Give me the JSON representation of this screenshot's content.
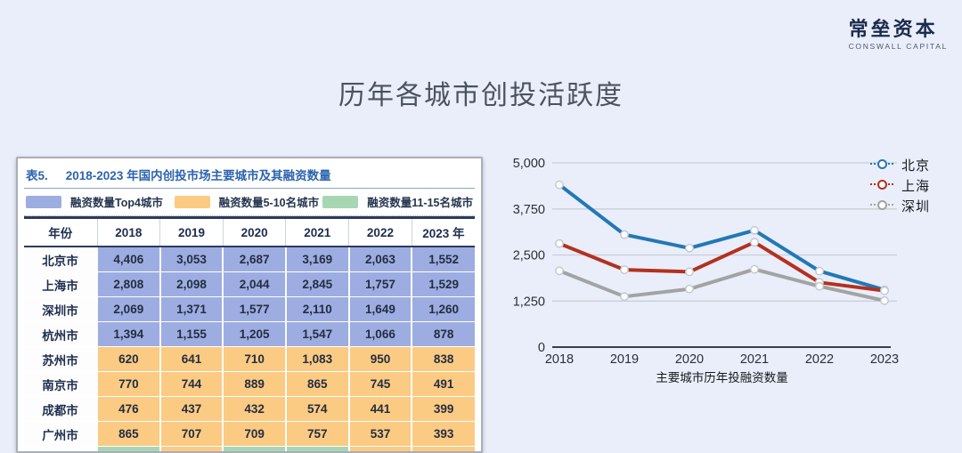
{
  "slide": {
    "title": "历年各城市创投活跃度"
  },
  "logo": {
    "cn": "常垒资本",
    "en": "CONSWALL CAPITAL",
    "red": "#b2232e",
    "blue": "#1f5080"
  },
  "table": {
    "caption_label": "表5.",
    "caption_text": "2018-2023 年国内创投市场主要城市及其融资数量",
    "legend": [
      {
        "label": "融资数量Top4城市",
        "color": "#9dade2"
      },
      {
        "label": "融资数量5-10名城市",
        "color": "#fbcb83"
      },
      {
        "label": "融资数量11-15名城市",
        "color": "#a7d7b2"
      }
    ],
    "columns": [
      "年份",
      "2018",
      "2019",
      "2020",
      "2021",
      "2022",
      "2023 年"
    ],
    "rows": [
      {
        "city": "北京市",
        "tier": "top4",
        "values": [
          "4,406",
          "3,053",
          "2,687",
          "3,169",
          "2,063",
          "1,552"
        ]
      },
      {
        "city": "上海市",
        "tier": "top4",
        "values": [
          "2,808",
          "2,098",
          "2,044",
          "2,845",
          "1,757",
          "1,529"
        ]
      },
      {
        "city": "深圳市",
        "tier": "top4",
        "values": [
          "2,069",
          "1,371",
          "1,577",
          "2,110",
          "1,649",
          "1,260"
        ]
      },
      {
        "city": "杭州市",
        "tier": "top4",
        "values": [
          "1,394",
          "1,155",
          "1,205",
          "1,547",
          "1,066",
          "878"
        ]
      },
      {
        "city": "苏州市",
        "tier": "rank5to10",
        "values": [
          "620",
          "641",
          "710",
          "1,083",
          "950",
          "838"
        ]
      },
      {
        "city": "南京市",
        "tier": "rank5to10",
        "values": [
          "770",
          "744",
          "889",
          "865",
          "745",
          "491"
        ]
      },
      {
        "city": "成都市",
        "tier": "rank5to10",
        "values": [
          "476",
          "437",
          "432",
          "574",
          "441",
          "399"
        ]
      },
      {
        "city": "广州市",
        "tier": "rank5to10",
        "values": [
          "865",
          "707",
          "709",
          "757",
          "537",
          "393"
        ]
      }
    ],
    "partial_row_colors": [
      "#a7d7b2",
      "#fbcb83",
      "#a7d7b2",
      "#a7d7b2",
      "#fbcb83",
      "#fbcb83"
    ]
  },
  "chart_data": {
    "type": "line",
    "x": [
      2018,
      2019,
      2020,
      2021,
      2022,
      2023
    ],
    "series": [
      {
        "name": "北京",
        "color": "#2278b5",
        "values": [
          4406,
          3053,
          2687,
          3169,
          2063,
          1552
        ]
      },
      {
        "name": "上海",
        "color": "#b5301e",
        "values": [
          2808,
          2098,
          2044,
          2845,
          1757,
          1529
        ]
      },
      {
        "name": "深圳",
        "color": "#a3a3a3",
        "values": [
          2069,
          1371,
          1577,
          2110,
          1649,
          1260
        ]
      }
    ],
    "ylim": [
      0,
      5000
    ],
    "yticks": [
      0,
      1250,
      2500,
      3750,
      5000
    ],
    "xlabel": "主要城市历年投融资数量",
    "legend_position": "top-right",
    "grid": true,
    "marker": {
      "fill": "#ffffff",
      "stroke": "#c2c8d0"
    }
  }
}
